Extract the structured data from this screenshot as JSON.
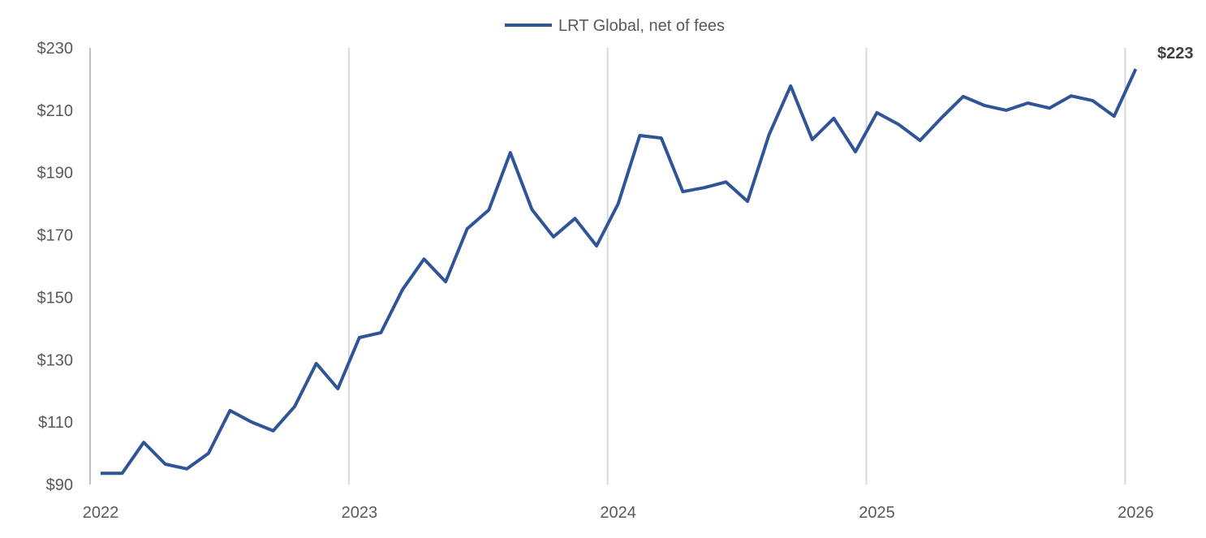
{
  "chart_data": {
    "type": "line",
    "title": "",
    "xlabel": "",
    "ylabel": "",
    "legend": {
      "entries": [
        "LRT Global, net of fees"
      ],
      "placement": "top-center"
    },
    "ylim": [
      90,
      230
    ],
    "y_ticks": [
      "$90",
      "$110",
      "$130",
      "$150",
      "$170",
      "$190",
      "$210",
      "$230"
    ],
    "y_tick_values": [
      90,
      110,
      130,
      150,
      170,
      190,
      210,
      230
    ],
    "x_ticks": [
      "2022",
      "2023",
      "2024",
      "2025",
      "2026"
    ],
    "x_tick_indices": [
      0,
      12,
      24,
      36,
      48
    ],
    "grid": "vertical at year boundaries",
    "end_label": "$223",
    "series": [
      {
        "name": "LRT Global, net of fees",
        "color": "#2F5597",
        "frequency": "monthly",
        "values": [
          93.6,
          93.6,
          103.5,
          96.5,
          95.0,
          100.0,
          113.7,
          110.0,
          107.2,
          115.0,
          128.8,
          120.7,
          137.1,
          138.7,
          152.5,
          162.3,
          155.0,
          172.0,
          178.0,
          196.4,
          178.2,
          169.4,
          175.3,
          166.5,
          180.0,
          201.9,
          201.1,
          183.9,
          185.2,
          187.0,
          180.8,
          202.2,
          217.8,
          200.6,
          207.4,
          196.7,
          209.2,
          205.5,
          200.3,
          207.6,
          214.4,
          211.5,
          210.0,
          212.3,
          210.7,
          214.6,
          213.1,
          208.1,
          223.2
        ]
      }
    ]
  }
}
